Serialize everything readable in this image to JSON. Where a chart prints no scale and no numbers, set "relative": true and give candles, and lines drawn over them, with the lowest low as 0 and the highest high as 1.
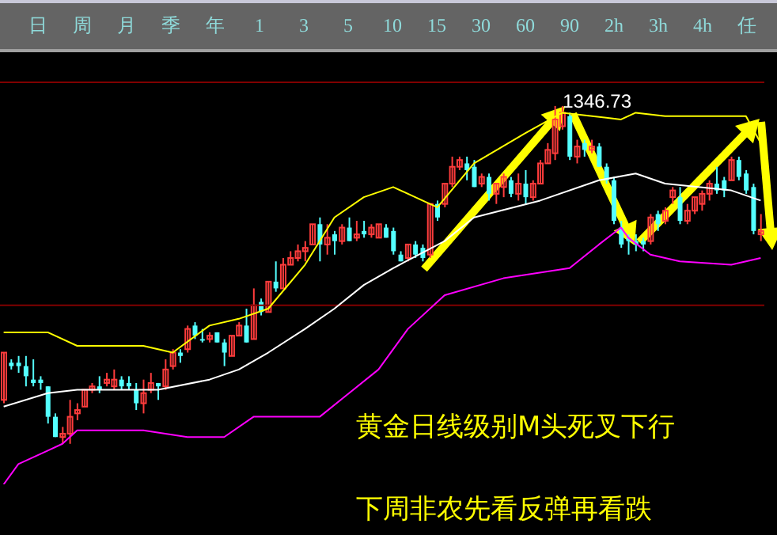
{
  "chart_data": {
    "type": "candlestick",
    "relative": true,
    "tick_labels": false,
    "categories": [
      null,
      null,
      null,
      null,
      null,
      null,
      null,
      null,
      null,
      null,
      null,
      null,
      null,
      null,
      null,
      null,
      null,
      null,
      null,
      null,
      null,
      null,
      null,
      null,
      null,
      null,
      null,
      null,
      null,
      null,
      null,
      null,
      null,
      null,
      null,
      null,
      null,
      null,
      null,
      null,
      null,
      null,
      null,
      null,
      null,
      null,
      null,
      null,
      null,
      null,
      null,
      null,
      null,
      null,
      null,
      null,
      null,
      null,
      null,
      null,
      null,
      null,
      null,
      null,
      null,
      null,
      null,
      null,
      null,
      null,
      null,
      null,
      null,
      null,
      null,
      null,
      null,
      null,
      null,
      null,
      null,
      null,
      null,
      null,
      null,
      null,
      null,
      null,
      null,
      null,
      null,
      null,
      null,
      null,
      null,
      null,
      null,
      null,
      null,
      null,
      null,
      null,
      null,
      null
    ],
    "ohlc": [
      [
        0.13,
        0.27,
        0.12,
        0.27
      ],
      [
        0.24,
        0.25,
        0.22,
        0.23
      ],
      [
        0.24,
        0.26,
        0.21,
        0.23
      ],
      [
        0.23,
        0.26,
        0.17,
        0.2
      ],
      [
        0.19,
        0.25,
        0.17,
        0.18
      ],
      [
        0.19,
        0.2,
        0.16,
        0.18
      ],
      [
        0.17,
        0.17,
        0.06,
        0.08
      ],
      [
        0.08,
        0.09,
        0.02,
        0.02
      ],
      [
        0.02,
        0.05,
        0,
        0.03
      ],
      [
        0.03,
        0.13,
        0,
        0.08
      ],
      [
        0.09,
        0.12,
        0.07,
        0.1
      ],
      [
        0.11,
        0.16,
        0.11,
        0.16
      ],
      [
        0.16,
        0.18,
        0.15,
        0.17
      ],
      [
        0.17,
        0.2,
        0.15,
        0.16
      ],
      [
        0.18,
        0.21,
        0.17,
        0.19
      ],
      [
        0.17,
        0.22,
        0.16,
        0.19
      ],
      [
        0.19,
        0.2,
        0.16,
        0.17
      ],
      [
        0.18,
        0.2,
        0.16,
        0.17
      ],
      [
        0.16,
        0.18,
        0.1,
        0.12
      ],
      [
        0.12,
        0.19,
        0.09,
        0.15
      ],
      [
        0.16,
        0.21,
        0.15,
        0.18
      ],
      [
        0.18,
        0.18,
        0.13,
        0.17
      ],
      [
        0.17,
        0.25,
        0.16,
        0.22
      ],
      [
        0.23,
        0.28,
        0.22,
        0.27
      ],
      [
        0.27,
        0.28,
        0.24,
        0.26
      ],
      [
        0.28,
        0.35,
        0.27,
        0.34
      ],
      [
        0.35,
        0.36,
        0.31,
        0.32
      ],
      [
        0.31,
        0.34,
        0.3,
        0.31
      ],
      [
        0.31,
        0.33,
        0.3,
        0.32
      ],
      [
        0.33,
        0.33,
        0.3,
        0.3
      ],
      [
        0.3,
        0.31,
        0.23,
        0.27
      ],
      [
        0.26,
        0.32,
        0.26,
        0.32
      ],
      [
        0.32,
        0.36,
        0.32,
        0.35
      ],
      [
        0.35,
        0.4,
        0.3,
        0.3
      ],
      [
        0.31,
        0.46,
        0.31,
        0.41
      ],
      [
        0.42,
        0.43,
        0.38,
        0.39
      ],
      [
        0.39,
        0.48,
        0.39,
        0.48
      ],
      [
        0.48,
        0.54,
        0.45,
        0.46
      ],
      [
        0.46,
        0.55,
        0.46,
        0.53
      ],
      [
        0.53,
        0.57,
        0.53,
        0.55
      ],
      [
        0.55,
        0.59,
        0.54,
        0.57
      ],
      [
        0.57,
        0.6,
        0.54,
        0.58
      ],
      [
        0.59,
        0.65,
        0.59,
        0.65
      ],
      [
        0.65,
        0.67,
        0.54,
        0.59
      ],
      [
        0.59,
        0.65,
        0.56,
        0.61
      ],
      [
        0.62,
        0.63,
        0.56,
        0.6
      ],
      [
        0.6,
        0.65,
        0.59,
        0.64
      ],
      [
        0.64,
        0.67,
        0.6,
        0.6
      ],
      [
        0.61,
        0.66,
        0.6,
        0.62
      ],
      [
        0.63,
        0.66,
        0.61,
        0.62
      ],
      [
        0.62,
        0.65,
        0.61,
        0.64
      ],
      [
        0.61,
        0.65,
        0.61,
        0.65
      ],
      [
        0.64,
        0.65,
        0.61,
        0.61
      ],
      [
        0.63,
        0.64,
        0.56,
        0.57
      ],
      [
        0.56,
        0.57,
        0.54,
        0.54
      ],
      [
        0.55,
        0.59,
        0.54,
        0.59
      ],
      [
        0.59,
        0.6,
        0.55,
        0.56
      ],
      [
        0.58,
        0.59,
        0.54,
        0.55
      ],
      [
        0.56,
        0.71,
        0.55,
        0.71
      ],
      [
        0.71,
        0.72,
        0.66,
        0.67
      ],
      [
        0.71,
        0.77,
        0.7,
        0.77
      ],
      [
        0.77,
        0.85,
        0.76,
        0.82
      ],
      [
        0.82,
        0.85,
        0.81,
        0.84
      ],
      [
        0.83,
        0.85,
        0.78,
        0.81
      ],
      [
        0.82,
        0.84,
        0.76,
        0.76
      ],
      [
        0.77,
        0.8,
        0.76,
        0.79
      ],
      [
        0.79,
        0.8,
        0.72,
        0.74
      ],
      [
        0.74,
        0.77,
        0.71,
        0.77
      ],
      [
        0.76,
        0.8,
        0.73,
        0.79
      ],
      [
        0.78,
        0.79,
        0.73,
        0.74
      ],
      [
        0.74,
        0.8,
        0.72,
        0.77
      ],
      [
        0.77,
        0.81,
        0.71,
        0.73
      ],
      [
        0.73,
        0.78,
        0.72,
        0.77
      ],
      [
        0.77,
        0.84,
        0.77,
        0.83
      ],
      [
        0.83,
        0.89,
        0.83,
        0.87
      ],
      [
        0.86,
        1,
        0.84,
        0.96
      ],
      [
        0.94,
        1,
        0.93,
        0.98
      ],
      [
        0.97,
        0.98,
        0.84,
        0.85
      ],
      [
        0.85,
        0.9,
        0.83,
        0.88
      ],
      [
        0.89,
        0.9,
        0.85,
        0.87
      ],
      [
        0.87,
        0.9,
        0.86,
        0.88
      ],
      [
        0.88,
        0.89,
        0.82,
        0.82
      ],
      [
        0.82,
        0.83,
        0.77,
        0.78
      ],
      [
        0.78,
        0.79,
        0.65,
        0.66
      ],
      [
        0.64,
        0.66,
        0.58,
        0.59
      ],
      [
        0.61,
        0.62,
        0.56,
        0.6
      ],
      [
        0.6,
        0.62,
        0.57,
        0.59
      ],
      [
        0.6,
        0.61,
        0.57,
        0.59
      ],
      [
        0.6,
        0.68,
        0.59,
        0.67
      ],
      [
        0.68,
        0.69,
        0.63,
        0.65
      ],
      [
        0.66,
        0.7,
        0.65,
        0.69
      ],
      [
        0.73,
        0.76,
        0.71,
        0.75
      ],
      [
        0.73,
        0.76,
        0.65,
        0.66
      ],
      [
        0.66,
        0.71,
        0.65,
        0.69
      ],
      [
        0.69,
        0.73,
        0.68,
        0.73
      ],
      [
        0.71,
        0.75,
        0.69,
        0.74
      ],
      [
        0.74,
        0.78,
        0.72,
        0.77
      ],
      [
        0.77,
        0.82,
        0.74,
        0.75
      ],
      [
        0.78,
        0.79,
        0.73,
        0.75
      ],
      [
        0.78,
        0.85,
        0.78,
        0.84
      ],
      [
        0.84,
        0.85,
        0.78,
        0.79
      ],
      [
        0.8,
        0.81,
        0.74,
        0.75
      ],
      [
        0.76,
        0.77,
        0.62,
        0.63
      ],
      [
        0.62,
        0.68,
        0.6,
        0.63
      ]
    ],
    "colors": [
      "#ff3c3c",
      "#54ffff",
      "#54ffff",
      "#54ffff",
      "#54ffff",
      "#54ffff",
      "#54ffff",
      "#54ffff",
      "#ff3c3c",
      "#ff3c3c",
      "#ff3c3c",
      "#ff3c3c",
      "#ff3c3c",
      "#54ffff",
      "#ff3c3c",
      "#ff3c3c",
      "#54ffff",
      "#54ffff",
      "#54ffff",
      "#ff3c3c",
      "#ff3c3c",
      "#54ffff",
      "#ff3c3c",
      "#ff3c3c",
      "#54ffff",
      "#ff3c3c",
      "#54ffff",
      "#54ffff",
      "#ff3c3c",
      "#54ffff",
      "#54ffff",
      "#ff3c3c",
      "#ff3c3c",
      "#54ffff",
      "#ff3c3c",
      "#54ffff",
      "#ff3c3c",
      "#54ffff",
      "#ff3c3c",
      "#ff3c3c",
      "#ff3c3c",
      "#ff3c3c",
      "#ff3c3c",
      "#54ffff",
      "#ff3c3c",
      "#54ffff",
      "#ff3c3c",
      "#54ffff",
      "#ff3c3c",
      "#54ffff",
      "#ff3c3c",
      "#ff3c3c",
      "#54ffff",
      "#54ffff",
      "#54ffff",
      "#ff3c3c",
      "#54ffff",
      "#54ffff",
      "#ff3c3c",
      "#54ffff",
      "#ff3c3c",
      "#ff3c3c",
      "#ff3c3c",
      "#54ffff",
      "#54ffff",
      "#ff3c3c",
      "#54ffff",
      "#ff3c3c",
      "#ff3c3c",
      "#54ffff",
      "#ff3c3c",
      "#54ffff",
      "#ff3c3c",
      "#ff3c3c",
      "#ff3c3c",
      "#ff3c3c",
      "#ff3c3c",
      "#54ffff",
      "#ff3c3c",
      "#54ffff",
      "#ff3c3c",
      "#54ffff",
      "#54ffff",
      "#54ffff",
      "#54ffff",
      "#54ffff",
      "#54ffff",
      "#54ffff",
      "#ff3c3c",
      "#54ffff",
      "#ff3c3c",
      "#ff3c3c",
      "#54ffff",
      "#ff3c3c",
      "#ff3c3c",
      "#ff3c3c",
      "#ff3c3c",
      "#54ffff",
      "#54ffff",
      "#ff3c3c",
      "#54ffff",
      "#54ffff",
      "#54ffff",
      "#ff3c3c"
    ],
    "series": [
      {
        "type": "line",
        "color": "#ffff00",
        "values": [
          0.33,
          null,
          null,
          null,
          null,
          null,
          0.33,
          null,
          null,
          null,
          0.29,
          null,
          null,
          null,
          null,
          null,
          null,
          null,
          null,
          0.29,
          null,
          null,
          null,
          0.27,
          null,
          null,
          null,
          null,
          0.35,
          null,
          null,
          null,
          0.37,
          null,
          null,
          null,
          0.4,
          null,
          null,
          null,
          null,
          0.53,
          null,
          null,
          null,
          0.67,
          null,
          null,
          null,
          0.73,
          null,
          null,
          null,
          0.76,
          null,
          null,
          0.73,
          null,
          null,
          0.7,
          null,
          null,
          null,
          null,
          0.83,
          null,
          null,
          null,
          null,
          null,
          null,
          0.92,
          null,
          null,
          null,
          null,
          0.98,
          null,
          null,
          null,
          null,
          null,
          null,
          null,
          0.96,
          null,
          0.98,
          null,
          null,
          null,
          0.97,
          null,
          null,
          null,
          null,
          null,
          null,
          null,
          null,
          0.97,
          null,
          0.97,
          null,
          0.89
        ]
      },
      {
        "type": "line",
        "color": "#ffffff",
        "values": [
          0.11,
          null,
          null,
          null,
          null,
          null,
          0.15,
          null,
          null,
          null,
          0.16,
          null,
          null,
          null,
          null,
          null,
          null,
          null,
          null,
          null,
          null,
          0.16,
          null,
          null,
          null,
          null,
          null,
          null,
          0.19,
          null,
          null,
          null,
          0.22,
          null,
          null,
          null,
          0.27,
          null,
          null,
          null,
          null,
          0.34,
          null,
          null,
          null,
          0.4,
          null,
          null,
          null,
          0.47,
          null,
          null,
          null,
          0.52,
          null,
          null,
          null,
          null,
          null,
          null,
          0.6,
          null,
          null,
          null,
          0.67,
          null,
          null,
          null,
          null,
          null,
          null,
          null,
          null,
          0.72,
          null,
          null,
          null,
          null,
          null,
          null,
          null,
          0.78,
          null,
          null,
          null,
          null,
          0.8,
          null,
          null,
          null,
          0.77,
          null,
          null,
          null,
          null,
          null,
          null,
          null,
          null,
          0.75,
          null,
          null,
          null,
          0.72
        ]
      },
      {
        "type": "line",
        "color": "#ff00ff",
        "values": [
          -0.12,
          null,
          -0.06,
          null,
          null,
          null,
          -0.02,
          null,
          0.0,
          null,
          0.04,
          null,
          null,
          null,
          null,
          null,
          null,
          null,
          null,
          0.04,
          null,
          null,
          null,
          null,
          null,
          0.02,
          null,
          null,
          null,
          null,
          0.02,
          null,
          null,
          null,
          0.08,
          null,
          null,
          null,
          0.08,
          null,
          null,
          null,
          null,
          0.08,
          null,
          null,
          null,
          0.15,
          null,
          null,
          null,
          0.22,
          null,
          null,
          null,
          0.34,
          null,
          null,
          null,
          null,
          0.44,
          null,
          null,
          null,
          null,
          null,
          null,
          null,
          0.49,
          null,
          null,
          null,
          null,
          null,
          null,
          null,
          null,
          0.52,
          null,
          null,
          null,
          0.59,
          null,
          null,
          0.64,
          0.61,
          null,
          null,
          0.56,
          null,
          null,
          null,
          0.54,
          null,
          null,
          null,
          null,
          null,
          null,
          0.53,
          null,
          null,
          null,
          0.55
        ]
      }
    ],
    "ref_lines": [
      {
        "axis": "y",
        "value": 1.07,
        "color": "#800000"
      },
      {
        "axis": "y",
        "value": 0.41,
        "color": "#800000"
      }
    ],
    "annotations": [
      "日 周 月 季 年 1 3 5 10 15 30 60 90 2h 3h 4h 任",
      "1346.73",
      "黄金日线级别M头死叉下行",
      "下周非农先看反弹再看跌"
    ]
  }
}
